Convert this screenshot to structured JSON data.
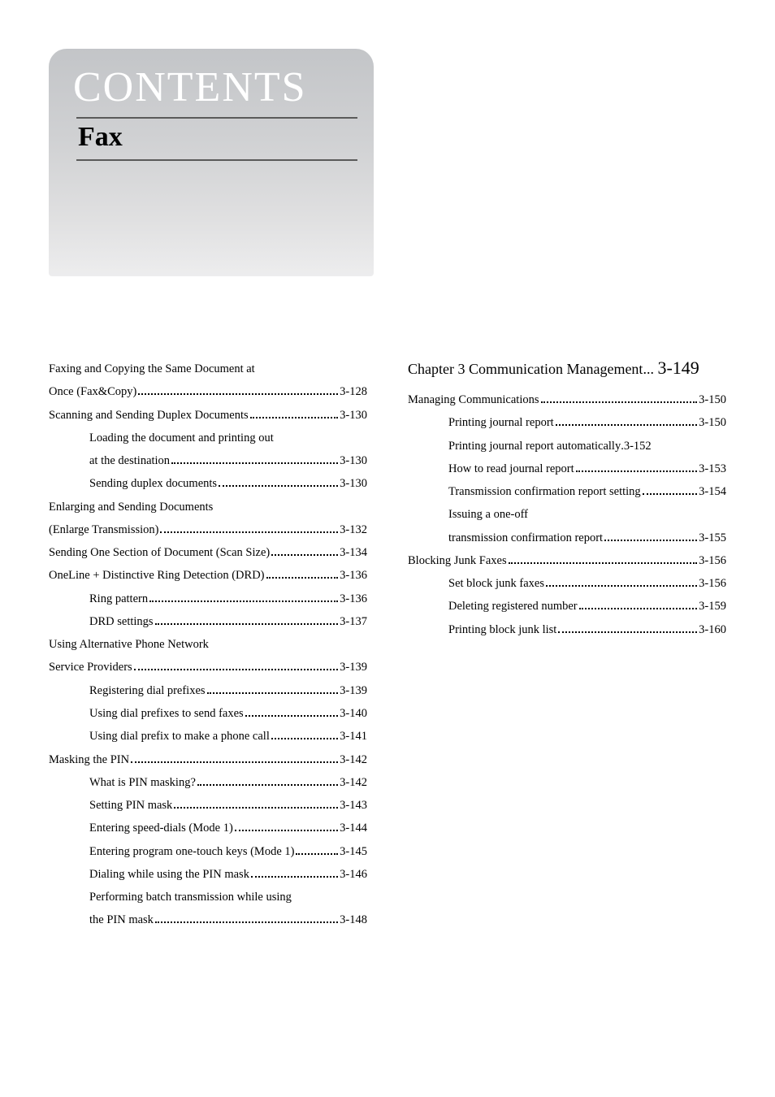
{
  "header": {
    "contents": "CONTENTS",
    "section": "Fax"
  },
  "left": [
    {
      "type": "multi",
      "text": "Faxing and Copying the Same Document at Once (Fax&Copy)",
      "page": "3-128",
      "indent": 0
    },
    {
      "type": "line",
      "text": "Scanning and Sending Duplex Documents",
      "page": "3-130",
      "indent": 0
    },
    {
      "type": "multi",
      "text": "Loading the document and printing out at the destination",
      "page": "3-130",
      "indent": 1
    },
    {
      "type": "line",
      "text": "Sending duplex documents",
      "page": "3-130",
      "indent": 1
    },
    {
      "type": "multi",
      "text": "Enlarging and Sending Documents (Enlarge Transmission)",
      "page": "3-132",
      "indent": 0
    },
    {
      "type": "line",
      "text": "Sending One Section of Document (Scan Size)",
      "page": "3-134",
      "indent": 0
    },
    {
      "type": "line",
      "text": "OneLine + Distinctive Ring Detection (DRD)",
      "page": "3-136",
      "indent": 0
    },
    {
      "type": "line",
      "text": "Ring pattern",
      "page": "3-136",
      "indent": 1
    },
    {
      "type": "line",
      "text": "DRD settings",
      "page": "3-137",
      "indent": 1
    },
    {
      "type": "multi",
      "text": "Using Alternative Phone Network Service Providers",
      "page": "3-139",
      "indent": 0
    },
    {
      "type": "line",
      "text": "Registering dial prefixes",
      "page": "3-139",
      "indent": 1
    },
    {
      "type": "line",
      "text": "Using dial prefixes to send faxes",
      "page": "3-140",
      "indent": 1
    },
    {
      "type": "line",
      "text": "Using dial prefix to make a phone call",
      "page": "3-141",
      "indent": 1
    },
    {
      "type": "line",
      "text": "Masking the PIN",
      "page": "3-142",
      "indent": 0
    },
    {
      "type": "line",
      "text": "What is PIN masking?",
      "page": "3-142",
      "indent": 1
    },
    {
      "type": "line",
      "text": "Setting PIN mask",
      "page": "3-143",
      "indent": 1
    },
    {
      "type": "line",
      "text": "Entering speed-dials (Mode 1)",
      "page": "3-144",
      "indent": 1
    },
    {
      "type": "line",
      "text": "Entering program one-touch keys (Mode 1)",
      "page": "3-145",
      "indent": 1
    },
    {
      "type": "line",
      "text": "Dialing while using the PIN mask",
      "page": "3-146",
      "indent": 1
    },
    {
      "type": "multi",
      "text": "Performing batch transmission while using the PIN mask",
      "page": "3-148",
      "indent": 1
    }
  ],
  "right": {
    "chapter_label": "Chapter 3 Communication Management",
    "chapter_page": "3-149",
    "items": [
      {
        "type": "line",
        "text": "Managing Communications",
        "page": "3-150",
        "indent": 0
      },
      {
        "type": "line",
        "text": "Printing journal report",
        "page": "3-150",
        "indent": 1
      },
      {
        "type": "line",
        "text": "Printing journal report automatically",
        "page": "3-152",
        "indent": 1,
        "tight": true
      },
      {
        "type": "line",
        "text": "How to read journal report",
        "page": "3-153",
        "indent": 1
      },
      {
        "type": "line",
        "text": "Transmission confirmation report setting",
        "page": "3-154",
        "indent": 1
      },
      {
        "type": "multi",
        "text": "Issuing a one-off transmission confirmation report",
        "page": "3-155",
        "indent": 1
      },
      {
        "type": "line",
        "text": "Blocking Junk Faxes",
        "page": "3-156",
        "indent": 0
      },
      {
        "type": "line",
        "text": "Set block junk faxes",
        "page": "3-156",
        "indent": 1
      },
      {
        "type": "line",
        "text": "Deleting registered number",
        "page": "3-159",
        "indent": 1
      },
      {
        "type": "line",
        "text": "Printing block junk list",
        "page": "3-160",
        "indent": 1
      }
    ]
  }
}
